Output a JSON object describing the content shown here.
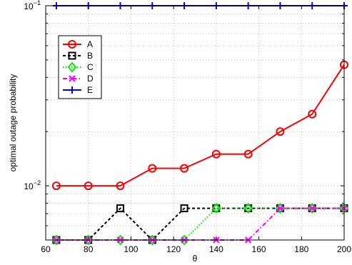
{
  "chart_data": {
    "type": "line",
    "title": "",
    "xlabel": "θ",
    "ylabel": "optimal outage probability",
    "xlim": [
      60,
      200
    ],
    "ylim": [
      0.005,
      0.1
    ],
    "yscale": "log",
    "grid": true,
    "legend_position": "top-left",
    "x": [
      65,
      80,
      95,
      110,
      125,
      140,
      155,
      170,
      185,
      200
    ],
    "x_ticks": [
      60,
      80,
      100,
      120,
      140,
      160,
      180,
      200
    ],
    "x_tick_labels": [
      "60",
      "80",
      "100",
      "120",
      "140",
      "160",
      "180",
      "200"
    ],
    "y_major_ticks": [
      0.01,
      0.1
    ],
    "y_tick_labels": [
      {
        "base": "10",
        "exp": "−2"
      },
      {
        "base": "10",
        "exp": "−1"
      }
    ],
    "series": [
      {
        "name": "A",
        "color": "#ff0000",
        "dash": "solid",
        "marker": "circle",
        "values": [
          0.01,
          0.01,
          0.01,
          0.0125,
          0.0125,
          0.015,
          0.015,
          0.02,
          0.025,
          0.047
        ]
      },
      {
        "name": "B",
        "color": "#000000",
        "dash": "dashed",
        "marker": "square",
        "values": [
          0.005,
          0.005,
          0.0075,
          0.005,
          0.0075,
          0.0075,
          0.0075,
          0.0075,
          0.0075,
          0.0075
        ]
      },
      {
        "name": "C",
        "color": "#00ee00",
        "dash": "dotted",
        "marker": "diamond",
        "values": [
          0.005,
          0.005,
          0.005,
          0.005,
          0.005,
          0.0075,
          0.0075,
          0.0075,
          0.0075,
          0.0075
        ]
      },
      {
        "name": "D",
        "color": "#ff00ff",
        "dash": "dashdot",
        "marker": "x",
        "values": [
          0.005,
          0.005,
          0.005,
          0.005,
          0.005,
          0.005,
          0.005,
          0.0075,
          0.0075,
          0.0075
        ]
      },
      {
        "name": "E",
        "color": "#0000ff",
        "dash": "solid",
        "marker": "plus",
        "values": [
          0.1,
          0.1,
          0.1,
          0.1,
          0.1,
          0.1,
          0.1,
          0.1,
          0.1,
          0.1
        ]
      }
    ]
  }
}
